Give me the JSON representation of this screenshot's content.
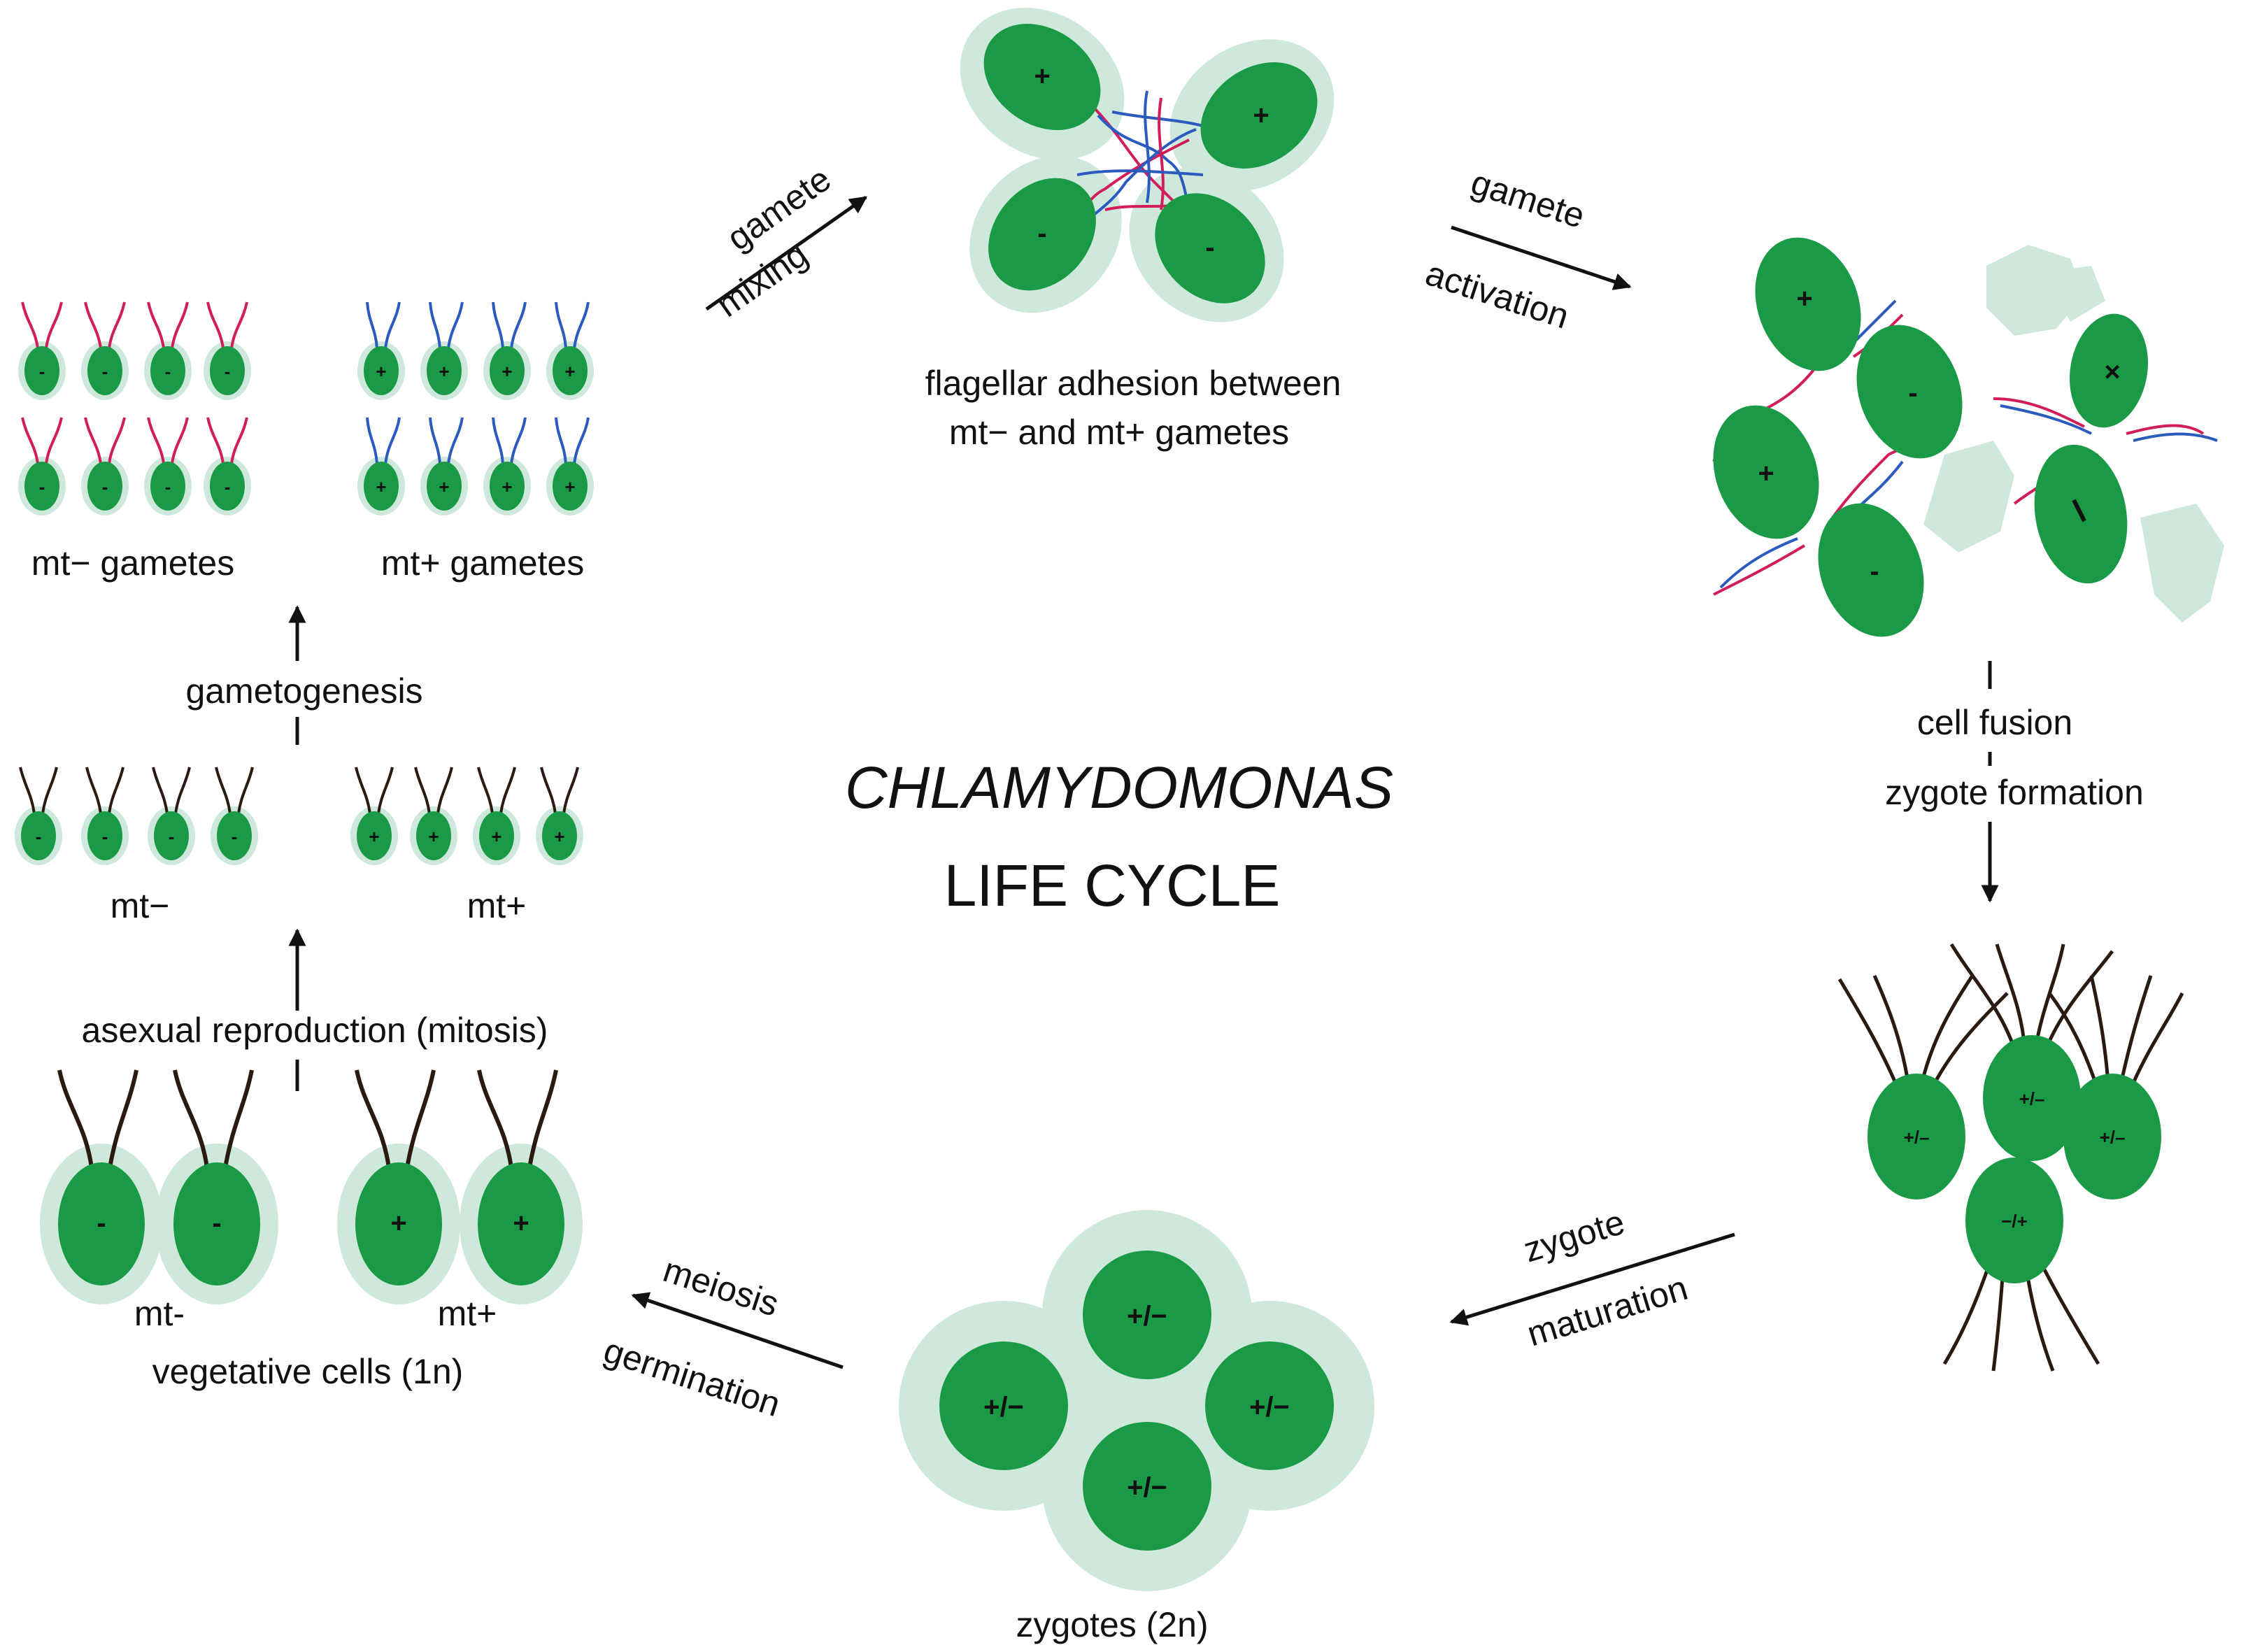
{
  "title": {
    "line1": "CHLAMYDOMONAS",
    "line2": "LIFE CYCLE"
  },
  "stages": {
    "mt_minus_gametes": "mt− gametes",
    "mt_plus_gametes": "mt+ gametes",
    "mt_minus": "mt−",
    "mt_plus": "mt+",
    "veg_mt_minus": "mt-",
    "veg_mt_plus": "mt+",
    "vegetative_cells": "vegetative cells (1n)",
    "adhesion_line1": "flagellar adhesion between",
    "adhesion_line2": "mt− and mt+ gametes",
    "zygotes": "zygotes (2n)"
  },
  "processes": {
    "gametogenesis": "gametogenesis",
    "asexual": "asexual reproduction (mitosis)",
    "gamete_mixing_1": "gamete",
    "gamete_mixing_2": "mixing",
    "gamete_activation_1": "gamete",
    "gamete_activation_2": "activation",
    "cell_fusion": "cell fusion",
    "zygote_formation": "zygote formation",
    "zygote_maturation_1": "zygote",
    "zygote_maturation_2": "maturation",
    "meiosis": "meiosis",
    "germination": "germination"
  },
  "signs": {
    "plus": "+",
    "minus": "-",
    "cross": "×",
    "pm": "+/−",
    "pm_small": "+/–",
    "mp_small": "−/+",
    "dash": "−"
  },
  "colors": {
    "cell_green": "#1a9a46",
    "halo": "#cfe8dc",
    "flagella_minus": "#d11e5a",
    "flagella_plus": "#2b5bbf",
    "flagella_dark": "#2a1a12",
    "ink": "#111111"
  }
}
